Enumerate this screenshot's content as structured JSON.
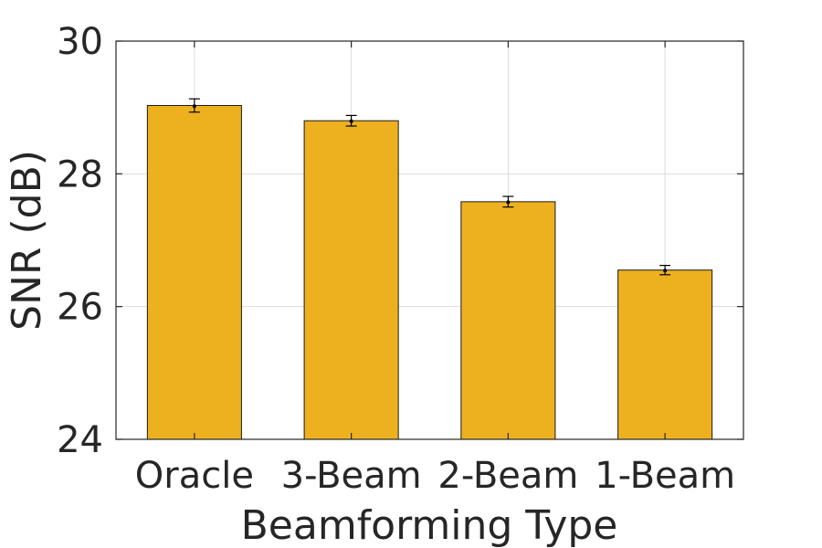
{
  "chart_data": {
    "type": "bar",
    "categories": [
      "Oracle",
      "3-Beam",
      "2-Beam",
      "1-Beam"
    ],
    "values": [
      29.03,
      28.8,
      27.58,
      26.55
    ],
    "error": [
      0.1,
      0.08,
      0.08,
      0.07
    ],
    "xlabel": "Beamforming Type",
    "ylabel": "SNR (dB)",
    "ylim": [
      24,
      30
    ],
    "yticks": [
      24,
      26,
      28,
      30
    ],
    "grid": true,
    "bar_color": "#EDB120"
  }
}
